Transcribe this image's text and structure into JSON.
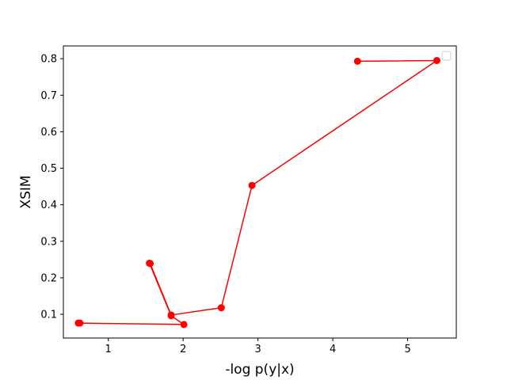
{
  "chart_data": {
    "type": "line",
    "title": "",
    "xlabel": "-log p(y|x)",
    "ylabel": "XSIM",
    "xlim": [
      0.4,
      5.65
    ],
    "ylim": [
      0.035,
      0.835
    ],
    "x_ticks": [
      1,
      2,
      3,
      4,
      5
    ],
    "x_tick_labels": [
      "1",
      "2",
      "3",
      "4",
      "5"
    ],
    "y_ticks": [
      0.1,
      0.2,
      0.3,
      0.4,
      0.5,
      0.6,
      0.7,
      0.8
    ],
    "y_tick_labels": [
      "0.1",
      "0.2",
      "0.3",
      "0.4",
      "0.5",
      "0.6",
      "0.7",
      "0.8"
    ],
    "grid": false,
    "legend": "top-right (empty)",
    "series": [
      {
        "color": "#ff0000",
        "marker": "circle",
        "x": [
          0.6,
          0.62,
          2.01,
          1.84,
          1.55,
          1.56,
          1.84,
          2.51,
          2.92,
          5.39,
          4.33
        ],
        "y": [
          0.076,
          0.076,
          0.072,
          0.096,
          0.24,
          0.239,
          0.098,
          0.118,
          0.453,
          0.795,
          0.793
        ]
      }
    ]
  }
}
